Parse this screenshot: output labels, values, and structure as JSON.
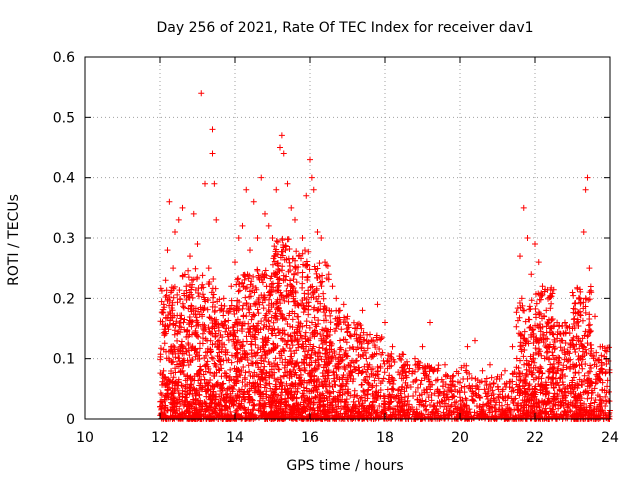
{
  "chart_data": {
    "type": "scatter",
    "title": "Day 256 of 2021, Rate Of TEC Index for receiver dav1",
    "xlabel": "GPS time / hours",
    "ylabel": "ROTI / TECUs",
    "xlim": [
      10,
      24
    ],
    "ylim": [
      0,
      0.6
    ],
    "xticks": [
      "10",
      "12",
      "14",
      "16",
      "18",
      "20",
      "22",
      "24"
    ],
    "yticks": [
      "0",
      "0.1",
      "0.2",
      "0.3",
      "0.4",
      "0.5",
      "0.6"
    ],
    "grid": true,
    "marker": "plus",
    "color": "#ff0000",
    "points": [
      [
        12.0,
        0.02
      ],
      [
        12.05,
        0.04
      ],
      [
        12.1,
        0.19
      ],
      [
        12.15,
        0.23
      ],
      [
        12.2,
        0.28
      ],
      [
        12.25,
        0.36
      ],
      [
        12.3,
        0.12
      ],
      [
        12.35,
        0.25
      ],
      [
        12.4,
        0.31
      ],
      [
        12.5,
        0.33
      ],
      [
        12.6,
        0.35
      ],
      [
        12.7,
        0.22
      ],
      [
        12.8,
        0.27
      ],
      [
        12.9,
        0.34
      ],
      [
        13.0,
        0.29
      ],
      [
        13.1,
        0.54
      ],
      [
        13.2,
        0.39
      ],
      [
        13.3,
        0.25
      ],
      [
        13.4,
        0.48
      ],
      [
        13.4,
        0.44
      ],
      [
        13.45,
        0.39
      ],
      [
        13.5,
        0.33
      ],
      [
        13.6,
        0.18
      ],
      [
        13.7,
        0.2
      ],
      [
        13.8,
        0.14
      ],
      [
        13.9,
        0.22
      ],
      [
        14.0,
        0.26
      ],
      [
        14.1,
        0.3
      ],
      [
        14.2,
        0.32
      ],
      [
        14.3,
        0.38
      ],
      [
        14.4,
        0.28
      ],
      [
        14.5,
        0.36
      ],
      [
        14.6,
        0.3
      ],
      [
        14.7,
        0.4
      ],
      [
        14.8,
        0.34
      ],
      [
        14.9,
        0.32
      ],
      [
        15.0,
        0.3
      ],
      [
        15.1,
        0.38
      ],
      [
        15.2,
        0.45
      ],
      [
        15.25,
        0.47
      ],
      [
        15.3,
        0.44
      ],
      [
        15.4,
        0.39
      ],
      [
        15.5,
        0.35
      ],
      [
        15.6,
        0.33
      ],
      [
        15.7,
        0.27
      ],
      [
        15.8,
        0.3
      ],
      [
        15.9,
        0.37
      ],
      [
        16.0,
        0.43
      ],
      [
        16.05,
        0.4
      ],
      [
        16.1,
        0.38
      ],
      [
        16.2,
        0.31
      ],
      [
        16.3,
        0.3
      ],
      [
        16.4,
        0.26
      ],
      [
        16.5,
        0.24
      ],
      [
        16.6,
        0.22
      ],
      [
        16.7,
        0.2
      ],
      [
        16.8,
        0.18
      ],
      [
        16.9,
        0.19
      ],
      [
        17.0,
        0.17
      ],
      [
        17.2,
        0.15
      ],
      [
        17.4,
        0.18
      ],
      [
        17.6,
        0.14
      ],
      [
        17.8,
        0.19
      ],
      [
        18.0,
        0.16
      ],
      [
        18.2,
        0.12
      ],
      [
        18.4,
        0.1
      ],
      [
        18.6,
        0.09
      ],
      [
        18.8,
        0.1
      ],
      [
        19.0,
        0.12
      ],
      [
        19.2,
        0.16
      ],
      [
        19.4,
        0.08
      ],
      [
        19.6,
        0.09
      ],
      [
        19.8,
        0.07
      ],
      [
        20.0,
        0.06
      ],
      [
        20.2,
        0.12
      ],
      [
        20.4,
        0.13
      ],
      [
        20.6,
        0.08
      ],
      [
        20.8,
        0.09
      ],
      [
        21.0,
        0.07
      ],
      [
        21.2,
        0.08
      ],
      [
        21.4,
        0.12
      ],
      [
        21.6,
        0.27
      ],
      [
        21.7,
        0.35
      ],
      [
        21.8,
        0.3
      ],
      [
        21.9,
        0.24
      ],
      [
        22.0,
        0.29
      ],
      [
        22.1,
        0.26
      ],
      [
        22.2,
        0.22
      ],
      [
        22.3,
        0.18
      ],
      [
        22.4,
        0.15
      ],
      [
        22.6,
        0.14
      ],
      [
        22.8,
        0.16
      ],
      [
        23.0,
        0.15
      ],
      [
        23.2,
        0.2
      ],
      [
        23.3,
        0.31
      ],
      [
        23.35,
        0.38
      ],
      [
        23.4,
        0.4
      ],
      [
        23.45,
        0.25
      ],
      [
        23.5,
        0.21
      ],
      [
        23.6,
        0.17
      ],
      [
        23.8,
        0.12
      ],
      [
        23.9,
        0.1
      ]
    ],
    "band": {
      "description_series": "dense low-level ROTI cloud",
      "ranges": [
        [
          12.0,
          12.5,
          0.0,
          0.22
        ],
        [
          12.5,
          13.0,
          0.0,
          0.25
        ],
        [
          13.0,
          13.5,
          0.0,
          0.24
        ],
        [
          13.5,
          14.0,
          0.0,
          0.2
        ],
        [
          14.0,
          14.5,
          0.0,
          0.24
        ],
        [
          14.5,
          15.0,
          0.0,
          0.25
        ],
        [
          15.0,
          15.5,
          0.0,
          0.3
        ],
        [
          15.5,
          16.0,
          0.0,
          0.28
        ],
        [
          16.0,
          16.5,
          0.0,
          0.26
        ],
        [
          16.5,
          17.0,
          0.0,
          0.18
        ],
        [
          17.0,
          17.5,
          0.0,
          0.16
        ],
        [
          17.5,
          18.0,
          0.0,
          0.14
        ],
        [
          18.0,
          18.5,
          0.0,
          0.11
        ],
        [
          18.5,
          19.0,
          0.0,
          0.1
        ],
        [
          19.0,
          19.5,
          0.0,
          0.09
        ],
        [
          19.5,
          20.0,
          0.0,
          0.08
        ],
        [
          20.0,
          20.5,
          0.0,
          0.09
        ],
        [
          20.5,
          21.0,
          0.0,
          0.07
        ],
        [
          21.0,
          21.5,
          0.0,
          0.08
        ],
        [
          21.5,
          22.0,
          0.0,
          0.2
        ],
        [
          22.0,
          22.5,
          0.0,
          0.22
        ],
        [
          22.5,
          23.0,
          0.0,
          0.16
        ],
        [
          23.0,
          23.5,
          0.0,
          0.22
        ],
        [
          23.5,
          24.0,
          0.0,
          0.12
        ]
      ]
    }
  }
}
